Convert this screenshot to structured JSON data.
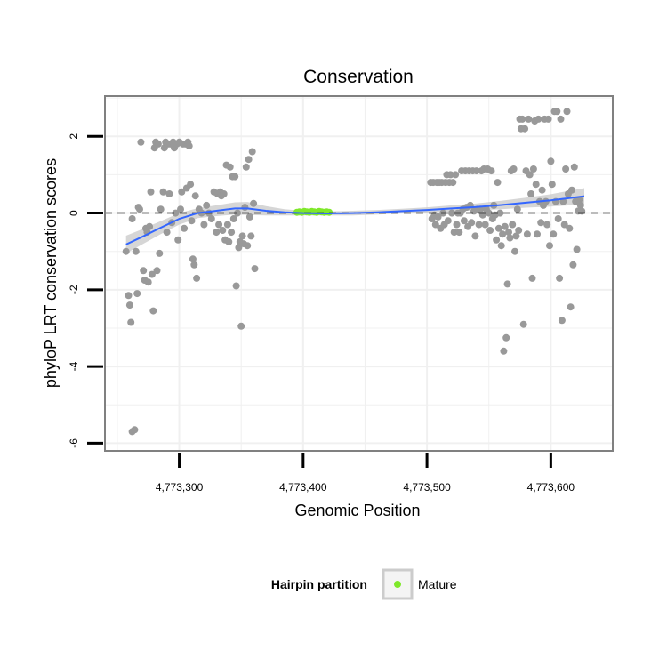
{
  "chart_data": {
    "type": "scatter",
    "title": "Conservation",
    "xlabel": "Genomic Position",
    "ylabel": "phyloP LRT conservation scores",
    "xlim": [
      4773240,
      4773650
    ],
    "ylim": [
      -6.2,
      3.05
    ],
    "x_ticks": [
      4773300,
      4773400,
      4773500,
      4773600
    ],
    "x_tick_labels": [
      "4,773,300",
      "4,773,400",
      "4,773,500",
      "4,773,600"
    ],
    "y_ticks": [
      -6,
      -4,
      -2,
      0,
      2
    ],
    "y_tick_labels": [
      "-6",
      "-4",
      "-2",
      "0",
      "2"
    ],
    "grid": true,
    "reference_line": {
      "y": 0,
      "style": "dashed",
      "color": "#000000"
    },
    "legend": {
      "title": "Hairpin partition",
      "position": "bottom",
      "entries": [
        {
          "label": "Mature",
          "color": "#7fe82a"
        }
      ]
    },
    "colors": {
      "points": "#999999",
      "mature": "#7fe82a",
      "smooth": "#3366ff",
      "band": "#c8c8c8"
    },
    "series": [
      {
        "kind": "points",
        "points": [
          [
            4773257,
            -1.0
          ],
          [
            4773259,
            -2.15
          ],
          [
            4773260,
            -2.4
          ],
          [
            4773261,
            -2.85
          ],
          [
            4773262,
            -5.7
          ],
          [
            4773264,
            -5.65
          ],
          [
            4773262,
            -0.15
          ],
          [
            4773265,
            -1.0
          ],
          [
            4773266,
            -2.1
          ],
          [
            4773267,
            0.15
          ],
          [
            4773268,
            0.1
          ],
          [
            4773269,
            1.85
          ],
          [
            4773271,
            -1.5
          ],
          [
            4773272,
            -1.75
          ],
          [
            4773273,
            -0.4
          ],
          [
            4773274,
            -0.5
          ],
          [
            4773275,
            -1.8
          ],
          [
            4773276,
            -0.35
          ],
          [
            4773277,
            0.55
          ],
          [
            4773278,
            -1.6
          ],
          [
            4773279,
            -2.55
          ],
          [
            4773280,
            1.7
          ],
          [
            4773281,
            1.85
          ],
          [
            4773282,
            -1.5
          ],
          [
            4773283,
            1.8
          ],
          [
            4773284,
            -1.05
          ],
          [
            4773285,
            0.1
          ],
          [
            4773287,
            0.55
          ],
          [
            4773288,
            1.7
          ],
          [
            4773289,
            1.85
          ],
          [
            4773290,
            -0.5
          ],
          [
            4773291,
            1.8
          ],
          [
            4773292,
            0.5
          ],
          [
            4773293,
            1.8
          ],
          [
            4773294,
            -0.25
          ],
          [
            4773295,
            1.85
          ],
          [
            4773296,
            1.7
          ],
          [
            4773297,
            0.0
          ],
          [
            4773298,
            1.8
          ],
          [
            4773299,
            -0.7
          ],
          [
            4773300,
            1.85
          ],
          [
            4773301,
            0.1
          ],
          [
            4773302,
            0.55
          ],
          [
            4773303,
            1.8
          ],
          [
            4773304,
            -0.4
          ],
          [
            4773305,
            1.8
          ],
          [
            4773306,
            0.65
          ],
          [
            4773307,
            1.85
          ],
          [
            4773308,
            1.75
          ],
          [
            4773309,
            0.75
          ],
          [
            4773310,
            -0.2
          ],
          [
            4773311,
            -1.2
          ],
          [
            4773312,
            -1.35
          ],
          [
            4773313,
            0.45
          ],
          [
            4773314,
            -1.7
          ],
          [
            4773316,
            0.1
          ],
          [
            4773318,
            0.0
          ],
          [
            4773320,
            -0.3
          ],
          [
            4773322,
            0.2
          ],
          [
            4773324,
            0.0
          ],
          [
            4773326,
            -0.15
          ],
          [
            4773328,
            0.55
          ],
          [
            4773330,
            -0.5
          ],
          [
            4773331,
            0.5
          ],
          [
            4773332,
            -0.3
          ],
          [
            4773333,
            0.55
          ],
          [
            4773334,
            0.45
          ],
          [
            4773335,
            -0.45
          ],
          [
            4773336,
            0.5
          ],
          [
            4773337,
            -0.7
          ],
          [
            4773338,
            1.25
          ],
          [
            4773339,
            -0.3
          ],
          [
            4773340,
            -0.75
          ],
          [
            4773341,
            1.2
          ],
          [
            4773342,
            -0.5
          ],
          [
            4773343,
            0.95
          ],
          [
            4773344,
            -0.15
          ],
          [
            4773345,
            0.95
          ],
          [
            4773346,
            -1.9
          ],
          [
            4773347,
            0.0
          ],
          [
            4773348,
            -0.9
          ],
          [
            4773349,
            -0.75
          ],
          [
            4773350,
            -2.95
          ],
          [
            4773351,
            -0.6
          ],
          [
            4773352,
            -0.8
          ],
          [
            4773353,
            0.15
          ],
          [
            4773354,
            1.2
          ],
          [
            4773355,
            -0.85
          ],
          [
            4773356,
            1.4
          ],
          [
            4773357,
            -0.1
          ],
          [
            4773358,
            -0.6
          ],
          [
            4773359,
            1.6
          ],
          [
            4773360,
            0.25
          ],
          [
            4773361,
            -1.45
          ],
          [
            4773503,
            0.8
          ],
          [
            4773504,
            -0.15
          ],
          [
            4773505,
            0.8
          ],
          [
            4773506,
            -0.05
          ],
          [
            4773507,
            -0.3
          ],
          [
            4773508,
            0.8
          ],
          [
            4773509,
            -0.1
          ],
          [
            4773510,
            0.8
          ],
          [
            4773511,
            -0.4
          ],
          [
            4773512,
            0.8
          ],
          [
            4773513,
            0.0
          ],
          [
            4773514,
            -0.3
          ],
          [
            4773515,
            0.8
          ],
          [
            4773516,
            1.0
          ],
          [
            4773517,
            -0.2
          ],
          [
            4773518,
            0.8
          ],
          [
            4773519,
            1.0
          ],
          [
            4773520,
            0.0
          ],
          [
            4773521,
            0.8
          ],
          [
            4773522,
            -0.5
          ],
          [
            4773523,
            1.0
          ],
          [
            4773524,
            -0.3
          ],
          [
            4773525,
            0.0
          ],
          [
            4773526,
            -0.5
          ],
          [
            4773527,
            0.0
          ],
          [
            4773528,
            1.1
          ],
          [
            4773529,
            0.1
          ],
          [
            4773530,
            -0.2
          ],
          [
            4773531,
            1.1
          ],
          [
            4773532,
            0.15
          ],
          [
            4773533,
            -0.35
          ],
          [
            4773534,
            1.1
          ],
          [
            4773535,
            0.2
          ],
          [
            4773536,
            -0.25
          ],
          [
            4773537,
            1.1
          ],
          [
            4773538,
            0.05
          ],
          [
            4773539,
            -0.6
          ],
          [
            4773540,
            1.1
          ],
          [
            4773541,
            0.1
          ],
          [
            4773542,
            -0.3
          ],
          [
            4773543,
            0.1
          ],
          [
            4773544,
            1.1
          ],
          [
            4773545,
            -0.05
          ],
          [
            4773546,
            1.15
          ],
          [
            4773547,
            -0.3
          ],
          [
            4773548,
            0.1
          ],
          [
            4773549,
            1.15
          ],
          [
            4773550,
            0.0
          ],
          [
            4773551,
            -0.45
          ],
          [
            4773552,
            1.1
          ],
          [
            4773553,
            -0.15
          ],
          [
            4773554,
            0.2
          ],
          [
            4773555,
            -0.05
          ],
          [
            4773556,
            -0.7
          ],
          [
            4773557,
            0.8
          ],
          [
            4773558,
            -0.4
          ],
          [
            4773559,
            0.0
          ],
          [
            4773560,
            -0.85
          ],
          [
            4773561,
            -0.55
          ],
          [
            4773562,
            -3.6
          ],
          [
            4773563,
            -0.35
          ],
          [
            4773564,
            -3.25
          ],
          [
            4773565,
            -1.85
          ],
          [
            4773566,
            -0.5
          ],
          [
            4773567,
            -0.65
          ],
          [
            4773568,
            1.1
          ],
          [
            4773569,
            -0.3
          ],
          [
            4773570,
            1.15
          ],
          [
            4773571,
            -1.0
          ],
          [
            4773572,
            -0.6
          ],
          [
            4773573,
            0.1
          ],
          [
            4773574,
            -0.45
          ],
          [
            4773575,
            2.45
          ],
          [
            4773576,
            2.2
          ],
          [
            4773577,
            2.45
          ],
          [
            4773578,
            -2.9
          ],
          [
            4773579,
            2.2
          ],
          [
            4773580,
            1.1
          ],
          [
            4773581,
            -0.55
          ],
          [
            4773582,
            2.45
          ],
          [
            4773583,
            1.0
          ],
          [
            4773584,
            0.5
          ],
          [
            4773585,
            -1.7
          ],
          [
            4773586,
            1.15
          ],
          [
            4773587,
            2.4
          ],
          [
            4773588,
            0.75
          ],
          [
            4773589,
            -0.55
          ],
          [
            4773590,
            2.45
          ],
          [
            4773591,
            0.3
          ],
          [
            4773592,
            -0.25
          ],
          [
            4773593,
            0.6
          ],
          [
            4773594,
            0.2
          ],
          [
            4773595,
            2.45
          ],
          [
            4773596,
            0.3
          ],
          [
            4773597,
            -0.3
          ],
          [
            4773598,
            2.45
          ],
          [
            4773599,
            -0.85
          ],
          [
            4773600,
            1.35
          ],
          [
            4773601,
            0.75
          ],
          [
            4773602,
            -0.55
          ],
          [
            4773603,
            2.65
          ],
          [
            4773604,
            0.3
          ],
          [
            4773605,
            2.65
          ],
          [
            4773606,
            -0.15
          ],
          [
            4773607,
            -1.7
          ],
          [
            4773608,
            2.45
          ],
          [
            4773609,
            -2.8
          ],
          [
            4773610,
            0.3
          ],
          [
            4773611,
            -0.3
          ],
          [
            4773612,
            1.15
          ],
          [
            4773613,
            2.65
          ],
          [
            4773614,
            0.5
          ],
          [
            4773615,
            -0.4
          ],
          [
            4773616,
            -2.45
          ],
          [
            4773617,
            0.6
          ],
          [
            4773618,
            -1.35
          ],
          [
            4773619,
            1.2
          ],
          [
            4773620,
            0.3
          ],
          [
            4773621,
            -0.95
          ],
          [
            4773622,
            0.05
          ],
          [
            4773623,
            0.35
          ],
          [
            4773624,
            0.2
          ],
          [
            4773625,
            0.05
          ]
        ]
      },
      {
        "kind": "mature",
        "name": "Mature",
        "points": [
          [
            4773395,
            0.02
          ],
          [
            4773397,
            0.03
          ],
          [
            4773399,
            0.02
          ],
          [
            4773401,
            0.04
          ],
          [
            4773403,
            0.03
          ],
          [
            4773405,
            0.02
          ],
          [
            4773407,
            0.04
          ],
          [
            4773409,
            0.03
          ],
          [
            4773411,
            0.02
          ],
          [
            4773413,
            0.04
          ],
          [
            4773415,
            0.03
          ],
          [
            4773417,
            0.02
          ],
          [
            4773419,
            0.03
          ],
          [
            4773421,
            0.02
          ]
        ]
      },
      {
        "kind": "smooth",
        "points": [
          [
            4773257,
            -0.82
          ],
          [
            4773270,
            -0.62
          ],
          [
            4773285,
            -0.38
          ],
          [
            4773300,
            -0.15
          ],
          [
            4773315,
            0.0
          ],
          [
            4773330,
            0.06
          ],
          [
            4773345,
            0.12
          ],
          [
            4773355,
            0.12
          ],
          [
            4773370,
            0.06
          ],
          [
            4773385,
            0.02
          ],
          [
            4773400,
            0.0
          ],
          [
            4773420,
            -0.01
          ],
          [
            4773440,
            0.0
          ],
          [
            4773460,
            0.02
          ],
          [
            4773480,
            0.05
          ],
          [
            4773500,
            0.08
          ],
          [
            4773520,
            0.12
          ],
          [
            4773540,
            0.16
          ],
          [
            4773560,
            0.21
          ],
          [
            4773580,
            0.27
          ],
          [
            4773600,
            0.33
          ],
          [
            4773615,
            0.39
          ],
          [
            4773627,
            0.44
          ]
        ],
        "band": [
          [
            4773257,
            -1.05,
            -0.59
          ],
          [
            4773270,
            -0.82,
            -0.42
          ],
          [
            4773285,
            -0.55,
            -0.21
          ],
          [
            4773300,
            -0.3,
            0.0
          ],
          [
            4773315,
            -0.13,
            0.13
          ],
          [
            4773330,
            -0.08,
            0.2
          ],
          [
            4773345,
            -0.04,
            0.28
          ],
          [
            4773355,
            -0.05,
            0.29
          ],
          [
            4773370,
            -0.06,
            0.18
          ],
          [
            4773385,
            -0.06,
            0.1
          ],
          [
            4773400,
            -0.06,
            0.06
          ],
          [
            4773420,
            -0.06,
            0.04
          ],
          [
            4773440,
            -0.06,
            0.06
          ],
          [
            4773460,
            -0.04,
            0.08
          ],
          [
            4773480,
            -0.01,
            0.11
          ],
          [
            4773500,
            0.01,
            0.15
          ],
          [
            4773520,
            0.04,
            0.2
          ],
          [
            4773540,
            0.07,
            0.25
          ],
          [
            4773560,
            0.1,
            0.32
          ],
          [
            4773580,
            0.14,
            0.4
          ],
          [
            4773600,
            0.17,
            0.49
          ],
          [
            4773615,
            0.2,
            0.58
          ],
          [
            4773627,
            0.23,
            0.65
          ]
        ]
      }
    ]
  }
}
